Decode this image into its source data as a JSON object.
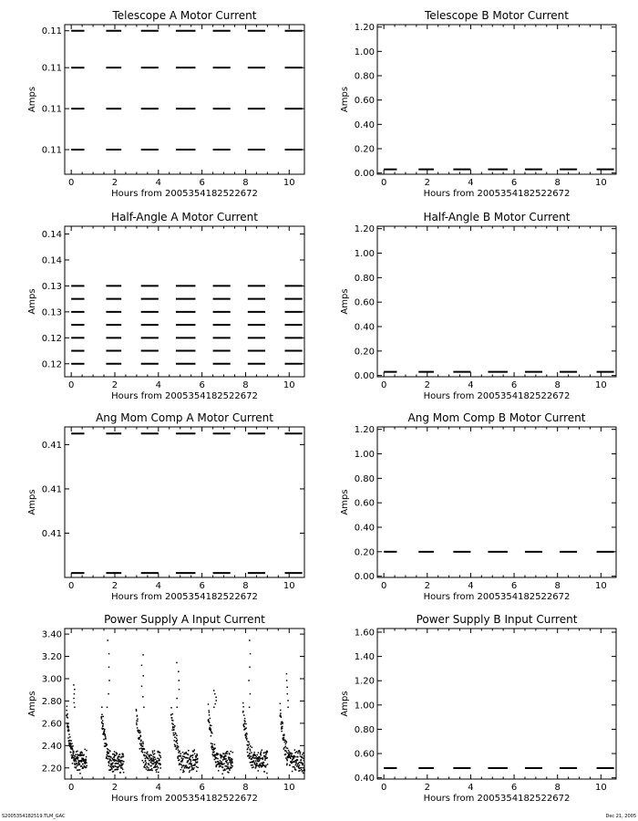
{
  "footer": {
    "left": "S2005354182519.TLM_GAC",
    "right": "Dec 21, 2005"
  },
  "chart_data": [
    {
      "id": "tel-a",
      "type": "scatter",
      "title": "Telescope A Motor Current",
      "xlabel": "Hours from 2005354182522672",
      "ylabel": "Amps",
      "xlim": [
        -0.3,
        10.7
      ],
      "ylim": [
        0.1078,
        0.1151
      ],
      "yticks": [
        0.109,
        0.111,
        0.113,
        0.1148
      ],
      "ytick_labels": [
        "0.11",
        "0.11",
        "0.11",
        "0.11"
      ],
      "xticks": [
        0,
        2,
        4,
        6,
        8,
        10
      ],
      "xtick_labels": [
        "0",
        "2",
        "4",
        "6",
        "8",
        "10"
      ],
      "segments": [
        [
          0.0,
          0.6
        ],
        [
          1.6,
          2.3
        ],
        [
          3.2,
          4.0
        ],
        [
          4.8,
          5.7
        ],
        [
          6.5,
          7.3
        ],
        [
          8.1,
          8.9
        ],
        [
          9.8,
          10.6
        ]
      ],
      "levels": [
        0.1148,
        0.113,
        0.111,
        0.109
      ]
    },
    {
      "id": "tel-b",
      "type": "scatter",
      "title": "Telescope B Motor Current",
      "xlabel": "Hours from 2005354182522672",
      "ylabel": "Amps",
      "xlim": [
        -0.3,
        10.7
      ],
      "ylim": [
        -0.01,
        1.22
      ],
      "yticks": [
        0,
        0.2,
        0.4,
        0.6,
        0.8,
        1.0,
        1.2
      ],
      "ytick_labels": [
        "0.00",
        "0.20",
        "0.40",
        "0.60",
        "0.80",
        "1.00",
        "1.20"
      ],
      "xticks": [
        0,
        2,
        4,
        6,
        8,
        10
      ],
      "xtick_labels": [
        "0",
        "2",
        "4",
        "6",
        "8",
        "10"
      ],
      "segments": [
        [
          0.0,
          0.6
        ],
        [
          1.6,
          2.3
        ],
        [
          3.2,
          4.0
        ],
        [
          4.8,
          5.7
        ],
        [
          6.5,
          7.3
        ],
        [
          8.1,
          8.9
        ],
        [
          9.8,
          10.6
        ]
      ],
      "levels": [
        0.03
      ]
    },
    {
      "id": "ha-a",
      "type": "scatter",
      "title": "Half-Angle A Motor Current",
      "xlabel": "Hours from 2005354182522672",
      "ylabel": "Amps",
      "xlim": [
        -0.3,
        10.7
      ],
      "ylim": [
        0.1175,
        0.1465
      ],
      "yticks": [
        0.12,
        0.125,
        0.13,
        0.135,
        0.14,
        0.145
      ],
      "ytick_labels": [
        "0.12",
        "0.12",
        "0.13",
        "0.13",
        "0.14",
        "0.14"
      ],
      "xticks": [
        0,
        2,
        4,
        6,
        8,
        10
      ],
      "xtick_labels": [
        "0",
        "2",
        "4",
        "6",
        "8",
        "10"
      ],
      "segments": [
        [
          0.0,
          0.6
        ],
        [
          1.6,
          2.3
        ],
        [
          3.2,
          4.0
        ],
        [
          4.8,
          5.7
        ],
        [
          6.5,
          7.3
        ],
        [
          8.1,
          8.9
        ],
        [
          9.8,
          10.6
        ]
      ],
      "levels": [
        0.12,
        0.1225,
        0.125,
        0.1275,
        0.13,
        0.1325,
        0.135
      ]
    },
    {
      "id": "ha-b",
      "type": "scatter",
      "title": "Half-Angle B Motor Current",
      "xlabel": "Hours from 2005354182522672",
      "ylabel": "Amps",
      "xlim": [
        -0.3,
        10.7
      ],
      "ylim": [
        -0.01,
        1.22
      ],
      "yticks": [
        0,
        0.2,
        0.4,
        0.6,
        0.8,
        1.0,
        1.2
      ],
      "ytick_labels": [
        "0.00",
        "0.20",
        "0.40",
        "0.60",
        "0.80",
        "1.00",
        "1.20"
      ],
      "xticks": [
        0,
        2,
        4,
        6,
        8,
        10
      ],
      "xtick_labels": [
        "0",
        "2",
        "4",
        "6",
        "8",
        "10"
      ],
      "segments": [
        [
          0.0,
          0.6
        ],
        [
          1.6,
          2.3
        ],
        [
          3.2,
          4.0
        ],
        [
          4.8,
          5.7
        ],
        [
          6.5,
          7.3
        ],
        [
          8.1,
          8.9
        ],
        [
          9.8,
          10.6
        ]
      ],
      "levels": [
        0.03
      ]
    },
    {
      "id": "am-a",
      "type": "scatter",
      "title": "Ang Mom Comp A Motor Current",
      "xlabel": "Hours from 2005354182522672",
      "ylabel": "Amps",
      "xlim": [
        -0.3,
        10.7
      ],
      "ylim": [
        0.406,
        0.4128
      ],
      "yticks": [
        0.408,
        0.41,
        0.412
      ],
      "ytick_labels": [
        "0.41",
        "0.41",
        "0.41"
      ],
      "xticks": [
        0,
        2,
        4,
        6,
        8,
        10
      ],
      "xtick_labels": [
        "0",
        "2",
        "4",
        "6",
        "8",
        "10"
      ],
      "segments": [
        [
          0.0,
          0.6
        ],
        [
          1.6,
          2.3
        ],
        [
          3.2,
          4.0
        ],
        [
          4.8,
          5.7
        ],
        [
          6.5,
          7.3
        ],
        [
          8.1,
          8.9
        ],
        [
          9.8,
          10.6
        ]
      ],
      "levels": [
        0.4125,
        0.4062
      ]
    },
    {
      "id": "am-b",
      "type": "scatter",
      "title": "Ang Mom Comp B Motor Current",
      "xlabel": "Hours from 2005354182522672",
      "ylabel": "Amps",
      "xlim": [
        -0.3,
        10.7
      ],
      "ylim": [
        -0.01,
        1.22
      ],
      "yticks": [
        0,
        0.2,
        0.4,
        0.6,
        0.8,
        1.0,
        1.2
      ],
      "ytick_labels": [
        "0.00",
        "0.20",
        "0.40",
        "0.60",
        "0.80",
        "1.00",
        "1.20"
      ],
      "xticks": [
        0,
        2,
        4,
        6,
        8,
        10
      ],
      "xtick_labels": [
        "0",
        "2",
        "4",
        "6",
        "8",
        "10"
      ],
      "segments": [
        [
          0.0,
          0.6
        ],
        [
          1.6,
          2.3
        ],
        [
          3.2,
          4.0
        ],
        [
          4.8,
          5.7
        ],
        [
          6.5,
          7.3
        ],
        [
          8.1,
          8.9
        ],
        [
          9.8,
          10.6
        ]
      ],
      "levels": [
        0.2
      ]
    },
    {
      "id": "ps-a",
      "type": "scatter",
      "title": "Power Supply A Input Current",
      "xlabel": "Hours from 2005354182522672",
      "ylabel": "Amps",
      "xlim": [
        -0.3,
        10.7
      ],
      "ylim": [
        2.1,
        3.45
      ],
      "yticks": [
        2.2,
        2.4,
        2.6,
        2.8,
        3.0,
        3.2,
        3.4
      ],
      "ytick_labels": [
        "2.20",
        "2.40",
        "2.60",
        "2.80",
        "3.00",
        "3.20",
        "3.40"
      ],
      "xticks": [
        0,
        2,
        4,
        6,
        8,
        10
      ],
      "xtick_labels": [
        "0",
        "2",
        "4",
        "6",
        "8",
        "10"
      ],
      "segments": [
        [
          0.0,
          0.6
        ],
        [
          1.6,
          2.3
        ],
        [
          3.2,
          4.0
        ],
        [
          4.8,
          5.7
        ],
        [
          6.5,
          7.3
        ],
        [
          8.1,
          8.9
        ],
        [
          9.8,
          10.6
        ]
      ],
      "levels": [],
      "noise": {
        "baseline": 2.3,
        "peak": 2.75,
        "spikes": [
          2.95,
          3.35,
          3.22,
          3.15,
          2.9,
          3.35,
          3.05
        ]
      }
    },
    {
      "id": "ps-b",
      "type": "scatter",
      "title": "Power Supply B Input Current",
      "xlabel": "Hours from 2005354182522672",
      "ylabel": "Amps",
      "xlim": [
        -0.3,
        10.7
      ],
      "ylim": [
        0.39,
        1.63
      ],
      "yticks": [
        0.4,
        0.6,
        0.8,
        1.0,
        1.2,
        1.4,
        1.6
      ],
      "ytick_labels": [
        "0.40",
        "0.60",
        "0.80",
        "1.00",
        "1.20",
        "1.40",
        "1.60"
      ],
      "xticks": [
        0,
        2,
        4,
        6,
        8,
        10
      ],
      "xtick_labels": [
        "0",
        "2",
        "4",
        "6",
        "8",
        "10"
      ],
      "segments": [
        [
          0.0,
          0.6
        ],
        [
          1.6,
          2.3
        ],
        [
          3.2,
          4.0
        ],
        [
          4.8,
          5.7
        ],
        [
          6.5,
          7.3
        ],
        [
          8.1,
          8.9
        ],
        [
          9.8,
          10.6
        ]
      ],
      "levels": [
        0.48
      ]
    }
  ]
}
